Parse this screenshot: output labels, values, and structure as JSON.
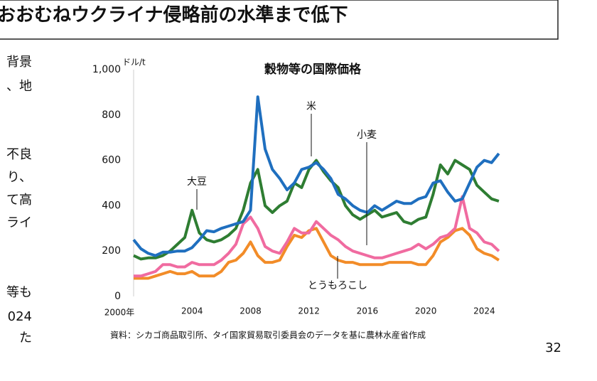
{
  "header": {
    "title": "おおむねウクライナ侵略前の水準まで低下"
  },
  "side_text": [
    "背景",
    "、地",
    "不良",
    "り、",
    "て高",
    "ライ",
    "等も",
    "024",
    "た"
  ],
  "page_number": "32",
  "chart_data": {
    "type": "line",
    "title": "穀物等の国際価格",
    "y_unit": "ドル/t",
    "source": "資料：シカゴ商品取引所、タイ国家貿易取引委員会のデータを基に農林水産省作成",
    "x": [
      2000,
      2000.5,
      2001,
      2001.5,
      2002,
      2002.5,
      2003,
      2003.5,
      2004,
      2004.5,
      2005,
      2005.5,
      2006,
      2006.5,
      2007,
      2007.5,
      2008,
      2008.5,
      2009,
      2009.5,
      2010,
      2010.5,
      2011,
      2011.5,
      2012,
      2012.5,
      2013,
      2013.5,
      2014,
      2014.5,
      2015,
      2015.5,
      2016,
      2016.5,
      2017,
      2017.5,
      2018,
      2018.5,
      2019,
      2019.5,
      2020,
      2020.5,
      2021,
      2021.5,
      2022,
      2022.5,
      2023,
      2023.5,
      2024,
      2024.5,
      2025
    ],
    "series": [
      {
        "name": "米",
        "color": "#1f6fbf",
        "values": [
          250,
          210,
          190,
          180,
          195,
          195,
          200,
          200,
          215,
          250,
          290,
          285,
          300,
          310,
          320,
          330,
          380,
          880,
          650,
          560,
          520,
          470,
          500,
          560,
          570,
          590,
          560,
          520,
          450,
          430,
          400,
          380,
          370,
          400,
          380,
          400,
          420,
          410,
          410,
          430,
          440,
          500,
          510,
          460,
          420,
          430,
          500,
          570,
          600,
          590,
          630
        ]
      },
      {
        "name": "大豆",
        "color": "#2e7d32",
        "values": [
          180,
          165,
          170,
          170,
          180,
          200,
          230,
          260,
          380,
          280,
          250,
          240,
          250,
          270,
          300,
          380,
          500,
          560,
          400,
          370,
          400,
          420,
          500,
          480,
          560,
          600,
          550,
          510,
          480,
          400,
          360,
          340,
          360,
          380,
          350,
          360,
          370,
          330,
          320,
          340,
          350,
          450,
          580,
          540,
          600,
          580,
          560,
          490,
          460,
          430,
          420
        ]
      },
      {
        "name": "小麦",
        "color": "#f06ba0",
        "values": [
          90,
          90,
          100,
          110,
          140,
          140,
          130,
          130,
          150,
          140,
          140,
          140,
          160,
          190,
          230,
          320,
          350,
          300,
          220,
          200,
          190,
          240,
          300,
          280,
          280,
          330,
          300,
          270,
          250,
          220,
          200,
          190,
          180,
          170,
          170,
          180,
          190,
          200,
          210,
          230,
          210,
          230,
          260,
          270,
          300,
          440,
          300,
          280,
          240,
          230,
          200
        ]
      },
      {
        "name": "とうもろこし",
        "color": "#f28c28",
        "values": [
          80,
          80,
          80,
          90,
          100,
          110,
          100,
          100,
          110,
          90,
          90,
          90,
          110,
          150,
          160,
          190,
          240,
          180,
          150,
          150,
          160,
          220,
          270,
          260,
          290,
          300,
          240,
          180,
          160,
          150,
          150,
          140,
          140,
          140,
          140,
          150,
          150,
          150,
          150,
          140,
          140,
          180,
          240,
          260,
          290,
          300,
          270,
          210,
          190,
          180,
          160
        ]
      }
    ],
    "xlim": [
      2000,
      2025.1
    ],
    "xticks": [
      {
        "value": 2000,
        "label": "2000年"
      },
      2004,
      2008,
      2012,
      2016,
      2020,
      2024
    ],
    "ylim": [
      0,
      1000
    ],
    "yticks": [
      0,
      200,
      400,
      600,
      800,
      {
        "value": 1000,
        "label": "1,000"
      }
    ]
  }
}
